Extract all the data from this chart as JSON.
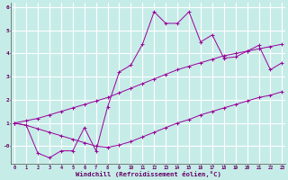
{
  "xlabel": "Windchill (Refroidissement éolien,°C)",
  "bg_color": "#c6ece8",
  "line_color": "#990099",
  "grid_color": "#ffffff",
  "x_data": [
    0,
    1,
    2,
    3,
    4,
    5,
    6,
    7,
    8,
    9,
    10,
    11,
    12,
    13,
    14,
    15,
    16,
    17,
    18,
    19,
    20,
    21,
    22,
    23
  ],
  "y_main": [
    1.0,
    0.9,
    -0.3,
    -0.5,
    -0.2,
    -0.2,
    0.8,
    -0.2,
    1.7,
    3.2,
    3.5,
    4.4,
    5.8,
    5.3,
    5.3,
    5.8,
    4.5,
    4.8,
    3.8,
    3.85,
    4.1,
    4.35,
    3.3,
    3.6
  ],
  "y_upper": [
    1.0,
    1.1,
    1.2,
    1.35,
    1.5,
    1.65,
    1.8,
    1.95,
    2.1,
    2.3,
    2.5,
    2.7,
    2.9,
    3.1,
    3.3,
    3.45,
    3.6,
    3.75,
    3.9,
    4.0,
    4.1,
    4.2,
    4.3,
    4.4
  ],
  "y_lower": [
    1.0,
    0.9,
    0.75,
    0.6,
    0.45,
    0.3,
    0.15,
    0.0,
    -0.05,
    0.05,
    0.2,
    0.4,
    0.6,
    0.8,
    1.0,
    1.15,
    1.35,
    1.5,
    1.65,
    1.8,
    1.95,
    2.1,
    2.2,
    2.35
  ],
  "xlim": [
    0,
    23
  ],
  "ylim": [
    -0.75,
    6.2
  ],
  "yticks": [
    0,
    1,
    2,
    3,
    4,
    5,
    6
  ],
  "ytick_labels": [
    "-0",
    "1",
    "2",
    "3",
    "4",
    "5",
    "6"
  ],
  "xticks": [
    0,
    1,
    2,
    3,
    4,
    5,
    6,
    7,
    8,
    9,
    10,
    11,
    12,
    13,
    14,
    15,
    16,
    17,
    18,
    19,
    20,
    21,
    22,
    23
  ]
}
